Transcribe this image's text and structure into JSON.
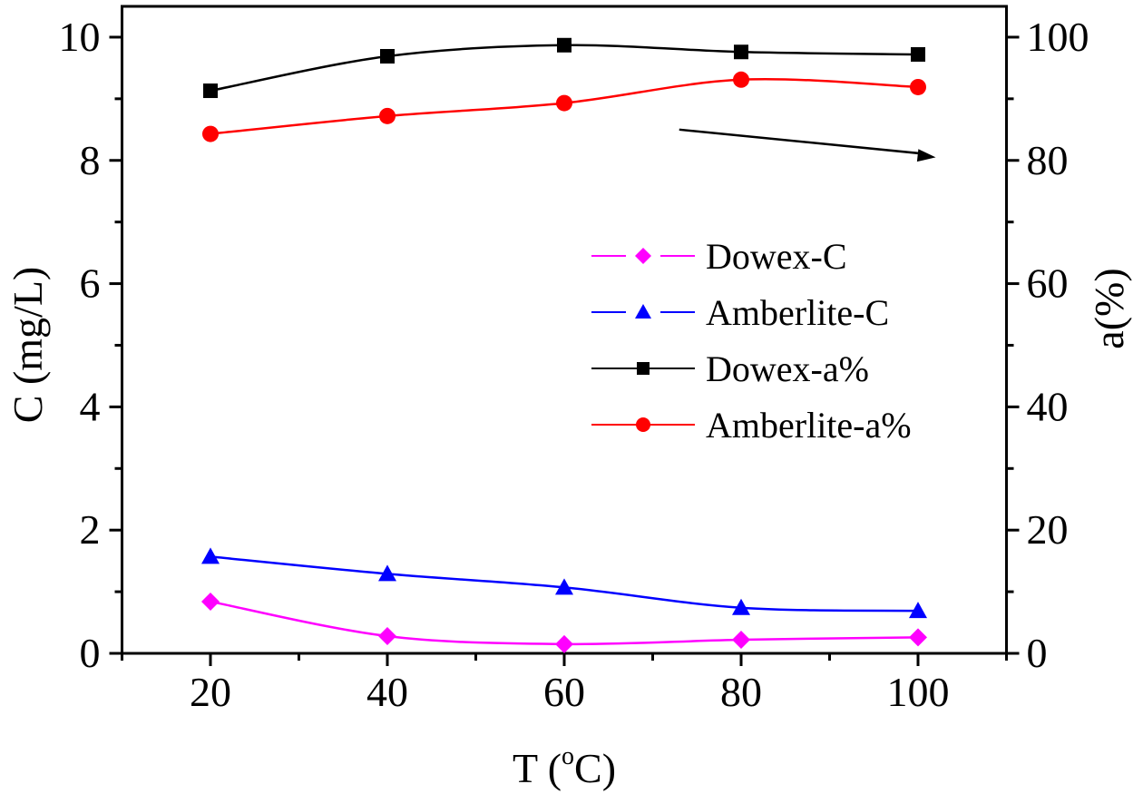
{
  "chart_data": {
    "type": "line",
    "title": "",
    "xlabel": "T (°C)",
    "xlabel_main": "T (",
    "xlabel_sup": "o",
    "xlabel_tail": "C)",
    "ylabel": "C (mg/L)",
    "y2label": "a(%)",
    "xlim": [
      10,
      110
    ],
    "ylim": [
      0,
      10.5
    ],
    "y2lim": [
      0,
      105
    ],
    "xticks": [
      20,
      40,
      60,
      80,
      100
    ],
    "xminor": [
      10,
      30,
      50,
      70,
      90,
      110
    ],
    "yticks": [
      0,
      2,
      4,
      6,
      8,
      10
    ],
    "yminor": [
      1,
      3,
      5,
      7,
      9
    ],
    "y2ticks": [
      0,
      20,
      40,
      60,
      80,
      100
    ],
    "y2minor": [
      10,
      30,
      50,
      70,
      90
    ],
    "grid": false,
    "legend_position": "center-right",
    "x": [
      20,
      40,
      60,
      80,
      100
    ],
    "series": [
      {
        "name": "Dowex-C",
        "axis": "left",
        "color": "#ff00ff",
        "marker": "diamond",
        "values": [
          0.84,
          0.28,
          0.15,
          0.22,
          0.26
        ]
      },
      {
        "name": "Amberlite-C",
        "axis": "left",
        "color": "#0000ff",
        "marker": "triangle",
        "values": [
          1.57,
          1.29,
          1.07,
          0.74,
          0.69
        ]
      },
      {
        "name": "Dowex-a%",
        "axis": "right",
        "color": "#000000",
        "marker": "square",
        "values": [
          91.3,
          96.9,
          98.7,
          97.6,
          97.2
        ]
      },
      {
        "name": "Amberlite-a%",
        "axis": "right",
        "color": "#ff0000",
        "marker": "circle",
        "values": [
          84.3,
          87.2,
          89.3,
          93.1,
          91.9
        ]
      }
    ],
    "annotations": [
      {
        "type": "arrow",
        "description": "arrow pointing to right axis a(%)",
        "from": [
          73,
          85
        ],
        "to": [
          102,
          80.5
        ],
        "axis": "right"
      }
    ]
  }
}
